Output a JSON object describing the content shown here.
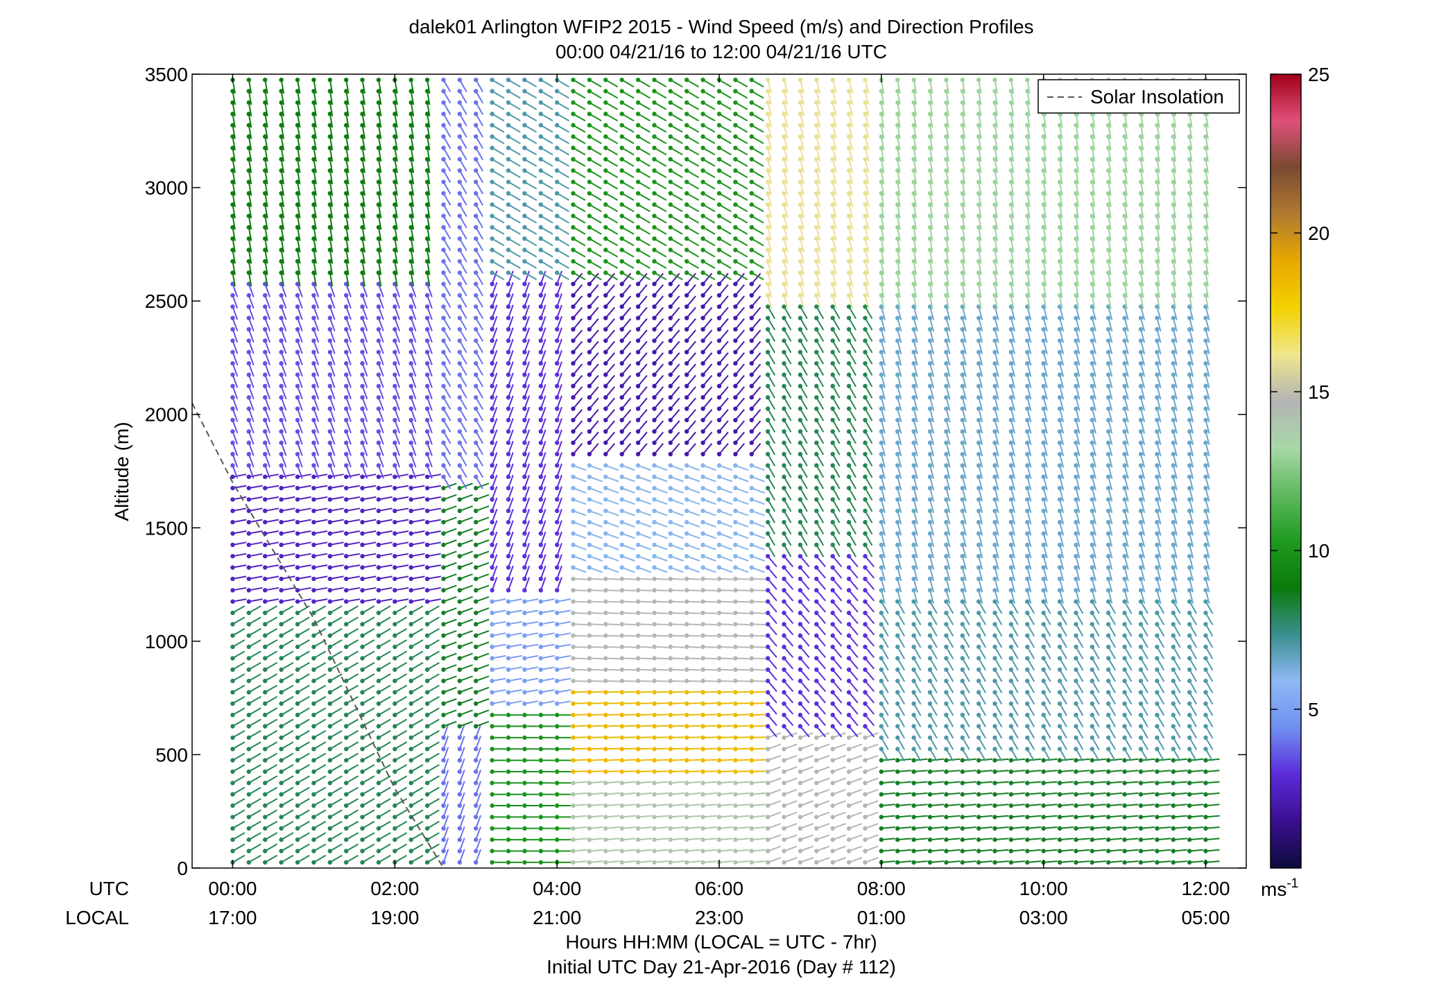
{
  "chart_data": {
    "type": "barb-profile",
    "title_line1": "dalek01 Arlington WFIP2 2015 - Wind Speed (m/s) and Direction Profiles",
    "title_line2": "00:00 04/21/16 to 12:00 04/21/16  UTC",
    "ylabel": "Altitude (m)",
    "ylim": [
      0,
      3500
    ],
    "yticks": [
      0,
      500,
      1000,
      1500,
      2000,
      2500,
      3000,
      3500
    ],
    "xlim_hours": [
      -0.5,
      12.5
    ],
    "xticks_hours": [
      0,
      2,
      4,
      6,
      8,
      10,
      12
    ],
    "xticks_utc": [
      "00:00",
      "02:00",
      "04:00",
      "06:00",
      "08:00",
      "10:00",
      "12:00"
    ],
    "xticks_local": [
      "17:00",
      "19:00",
      "21:00",
      "23:00",
      "01:00",
      "03:00",
      "05:00"
    ],
    "row_label_utc": "UTC",
    "row_label_local": "LOCAL",
    "xlabel_line1": "Hours HH:MM  (LOCAL = UTC - 7hr)",
    "xlabel_line2": "Initial UTC Day 21-Apr-2016 (Day # 112)",
    "legend": {
      "label": "Solar Insolation",
      "placement": "top-right"
    },
    "solar_insolation_line": {
      "hours": [
        -0.5,
        0.0,
        1.0,
        2.0,
        2.6
      ],
      "altitude_m": [
        2050,
        1700,
        1100,
        350,
        0
      ]
    },
    "colorbar": {
      "range": [
        0,
        25
      ],
      "ticks": [
        5,
        10,
        15,
        20,
        25
      ],
      "unit": "ms",
      "unit_exp": "-1",
      "colors": [
        "#0b0b3a",
        "#3a0f8f",
        "#5b2bd9",
        "#6f8ff0",
        "#8fb8f5",
        "#3a8f8f",
        "#0a7a0a",
        "#1e9a1e",
        "#5fb85f",
        "#a8d8a8",
        "#b4b4b4",
        "#f0e68c",
        "#f2d200",
        "#e8a800",
        "#b07a30",
        "#7a4a30",
        "#e0507a",
        "#a00018"
      ]
    },
    "grid": false,
    "columns_hours_step": 0.2,
    "levels_altitude_step_m": 50,
    "wind_regimes": [
      {
        "t0": 0.0,
        "t1": 2.5,
        "z0": 0,
        "z1": 1150,
        "speed": 8,
        "dir": 240
      },
      {
        "t0": 0.0,
        "t1": 2.5,
        "z0": 1150,
        "z1": 1750,
        "speed": 2.5,
        "dir": 260
      },
      {
        "t0": 0.0,
        "t1": 2.5,
        "z0": 1750,
        "z1": 2600,
        "speed": 3.5,
        "dir": 340
      },
      {
        "t0": 0.0,
        "t1": 2.5,
        "z0": 2600,
        "z1": 3500,
        "speed": 9,
        "dir": 350
      },
      {
        "t0": 2.5,
        "t1": 3.2,
        "z0": 0,
        "z1": 600,
        "speed": 4,
        "dir": 200
      },
      {
        "t0": 2.5,
        "t1": 3.2,
        "z0": 600,
        "z1": 1700,
        "speed": 8.5,
        "dir": 250
      },
      {
        "t0": 2.5,
        "t1": 3.2,
        "z0": 1700,
        "z1": 3500,
        "speed": 4,
        "dir": 330
      },
      {
        "t0": 3.2,
        "t1": 4.2,
        "z0": 0,
        "z1": 700,
        "speed": 10,
        "dir": 270
      },
      {
        "t0": 3.2,
        "t1": 4.2,
        "z0": 700,
        "z1": 1200,
        "speed": 5,
        "dir": 260
      },
      {
        "t0": 3.2,
        "t1": 4.2,
        "z0": 1200,
        "z1": 2600,
        "speed": 3,
        "dir": 200
      },
      {
        "t0": 3.2,
        "t1": 4.2,
        "z0": 2600,
        "z1": 3500,
        "speed": 7,
        "dir": 300
      },
      {
        "t0": 4.2,
        "t1": 6.5,
        "z0": 0,
        "z1": 400,
        "speed": 14,
        "dir": 265
      },
      {
        "t0": 4.2,
        "t1": 6.5,
        "z0": 400,
        "z1": 800,
        "speed": 18.5,
        "dir": 268
      },
      {
        "t0": 4.2,
        "t1": 6.5,
        "z0": 800,
        "z1": 1300,
        "speed": 14.5,
        "dir": 272
      },
      {
        "t0": 4.2,
        "t1": 6.5,
        "z0": 1300,
        "z1": 1800,
        "speed": 6,
        "dir": 290
      },
      {
        "t0": 4.2,
        "t1": 6.5,
        "z0": 1800,
        "z1": 2600,
        "speed": 2,
        "dir": 220
      },
      {
        "t0": 4.2,
        "t1": 6.5,
        "z0": 2600,
        "z1": 3500,
        "speed": 10,
        "dir": 300
      },
      {
        "t0": 6.5,
        "t1": 7.9,
        "z0": 0,
        "z1": 600,
        "speed": 14.5,
        "dir": 250
      },
      {
        "t0": 6.5,
        "t1": 7.9,
        "z0": 600,
        "z1": 1400,
        "speed": 3,
        "dir": 320
      },
      {
        "t0": 6.5,
        "t1": 7.9,
        "z0": 1400,
        "z1": 2500,
        "speed": 8,
        "dir": 330
      },
      {
        "t0": 6.5,
        "t1": 7.9,
        "z0": 2500,
        "z1": 3500,
        "speed": 16,
        "dir": 345
      },
      {
        "t0": 7.9,
        "t1": 12.0,
        "z0": 0,
        "z1": 500,
        "speed": 8.5,
        "dir": 265
      },
      {
        "t0": 7.9,
        "t1": 12.0,
        "z0": 500,
        "z1": 1200,
        "speed": 7,
        "dir": 330
      },
      {
        "t0": 7.9,
        "t1": 12.0,
        "z0": 1200,
        "z1": 2500,
        "speed": 6.5,
        "dir": 345
      },
      {
        "t0": 7.9,
        "t1": 12.0,
        "z0": 2500,
        "z1": 3500,
        "speed": 13,
        "dir": 350
      }
    ]
  }
}
